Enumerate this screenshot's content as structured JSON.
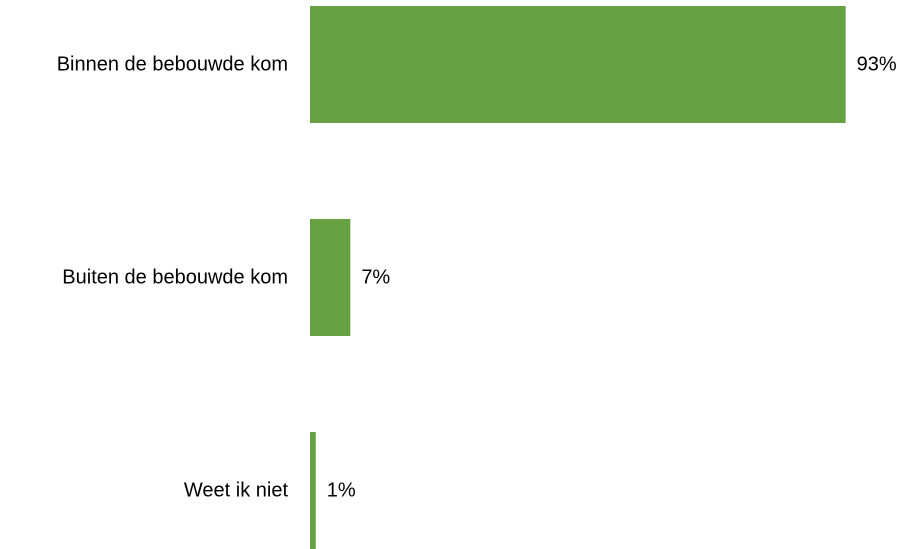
{
  "chart_data": {
    "type": "bar",
    "orientation": "horizontal",
    "categories": [
      "Binnen de bebouwde kom",
      "Buiten de bebouwde kom",
      "Weet ik niet"
    ],
    "values": [
      93,
      7,
      1
    ],
    "value_labels": [
      "93%",
      "7%",
      "1%"
    ],
    "unit": "%",
    "xlim": [
      0,
      100
    ],
    "grid": false,
    "legend": "none",
    "colors": {
      "bar": "#66a144",
      "text": "#000000",
      "background": "#ffffff"
    }
  }
}
